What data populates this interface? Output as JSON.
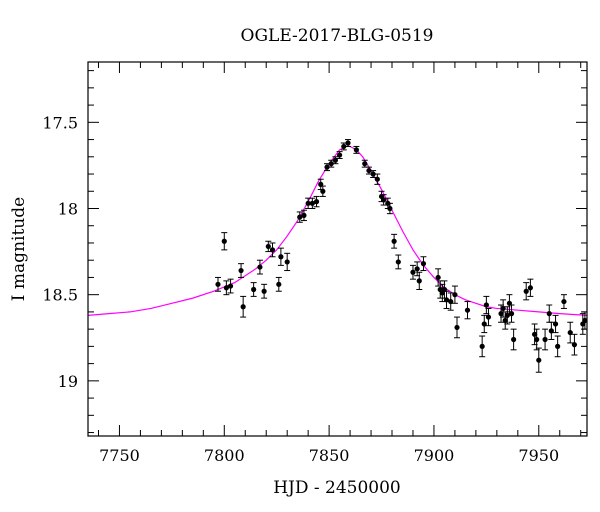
{
  "chart_data": {
    "type": "scatter",
    "title": "OGLE-2017-BLG-0519",
    "xlabel": "HJD - 2450000",
    "ylabel": "I magnitude",
    "xlim": [
      7735,
      7973
    ],
    "ylim": [
      19.32,
      17.15
    ],
    "y_inverted": true,
    "grid": false,
    "colors": {
      "points": "#000000",
      "model": "#ff00ff"
    },
    "x_major_ticks": [
      7750,
      7800,
      7850,
      7900,
      7950
    ],
    "x_tick_labels": [
      "7750",
      "7800",
      "7850",
      "7900",
      "7950"
    ],
    "x_minor_step": 10,
    "y_major_ticks": [
      17.5,
      18,
      18.5,
      19
    ],
    "y_tick_labels": [
      "17.5",
      "18",
      "18.5",
      "19"
    ],
    "y_minor_step": 0.1,
    "model": {
      "name": "",
      "x": [
        7735,
        7745,
        7755,
        7765,
        7775,
        7785,
        7795,
        7805,
        7815,
        7820,
        7825,
        7830,
        7835,
        7840,
        7845,
        7850,
        7855,
        7858,
        7860,
        7863,
        7866,
        7870,
        7875,
        7880,
        7885,
        7890,
        7895,
        7900,
        7905,
        7910,
        7915,
        7920,
        7925,
        7930,
        7940,
        7950,
        7960,
        7973
      ],
      "y": [
        18.62,
        18.61,
        18.6,
        18.58,
        18.55,
        18.52,
        18.48,
        18.43,
        18.35,
        18.3,
        18.24,
        18.16,
        18.07,
        17.96,
        17.84,
        17.74,
        17.66,
        17.64,
        17.64,
        17.66,
        17.7,
        17.78,
        17.89,
        18.01,
        18.13,
        18.24,
        18.33,
        18.4,
        18.46,
        18.5,
        18.53,
        18.55,
        18.57,
        18.58,
        18.59,
        18.6,
        18.61,
        18.62
      ]
    },
    "points": {
      "x": [
        7797,
        7800,
        7801,
        7803,
        7808,
        7809,
        7814,
        7817,
        7819,
        7821,
        7823,
        7826,
        7827,
        7830,
        7836,
        7838,
        7840,
        7842,
        7844,
        7846,
        7847,
        7849,
        7851,
        7853,
        7855,
        7857,
        7859,
        7863,
        7867,
        7869,
        7871,
        7873,
        7875,
        7876,
        7878,
        7879,
        7881,
        7883,
        7890,
        7892,
        7893,
        7895,
        7902,
        7903,
        7904,
        7905,
        7906,
        7908,
        7910,
        7911,
        7916,
        7923,
        7924,
        7925,
        7926,
        7932,
        7933,
        7934,
        7935,
        7936,
        7937,
        7938,
        7944,
        7946,
        7948,
        7949,
        7950,
        7953,
        7955,
        7956,
        7958,
        7959,
        7962,
        7965,
        7967,
        7971,
        7972
      ],
      "y": [
        18.44,
        18.19,
        18.46,
        18.45,
        18.36,
        18.57,
        18.47,
        18.34,
        18.48,
        18.22,
        18.24,
        18.44,
        18.28,
        18.31,
        18.05,
        18.04,
        17.97,
        17.97,
        17.96,
        17.86,
        17.9,
        17.76,
        17.74,
        17.72,
        17.69,
        17.64,
        17.62,
        17.66,
        17.74,
        17.78,
        17.8,
        17.83,
        17.93,
        17.95,
        17.97,
        18.0,
        18.19,
        18.31,
        18.37,
        18.35,
        18.42,
        18.32,
        18.4,
        18.47,
        18.49,
        18.47,
        18.53,
        18.54,
        18.5,
        18.69,
        18.59,
        18.8,
        18.67,
        18.56,
        18.63,
        18.61,
        18.58,
        18.65,
        18.62,
        18.55,
        18.61,
        18.76,
        18.48,
        18.46,
        18.73,
        18.76,
        18.88,
        18.76,
        18.61,
        18.71,
        18.67,
        18.8,
        18.54,
        18.72,
        18.79,
        18.67,
        18.65
      ],
      "err": [
        0.04,
        0.05,
        0.04,
        0.04,
        0.04,
        0.06,
        0.04,
        0.04,
        0.04,
        0.03,
        0.04,
        0.04,
        0.05,
        0.05,
        0.03,
        0.03,
        0.03,
        0.03,
        0.03,
        0.03,
        0.03,
        0.02,
        0.02,
        0.02,
        0.02,
        0.02,
        0.02,
        0.02,
        0.02,
        0.02,
        0.02,
        0.03,
        0.03,
        0.03,
        0.03,
        0.03,
        0.04,
        0.04,
        0.04,
        0.04,
        0.05,
        0.04,
        0.05,
        0.05,
        0.05,
        0.05,
        0.05,
        0.05,
        0.05,
        0.06,
        0.05,
        0.06,
        0.05,
        0.05,
        0.05,
        0.05,
        0.05,
        0.05,
        0.05,
        0.05,
        0.05,
        0.06,
        0.05,
        0.05,
        0.06,
        0.06,
        0.07,
        0.06,
        0.05,
        0.05,
        0.05,
        0.06,
        0.04,
        0.06,
        0.06,
        0.06,
        0.05
      ]
    }
  }
}
